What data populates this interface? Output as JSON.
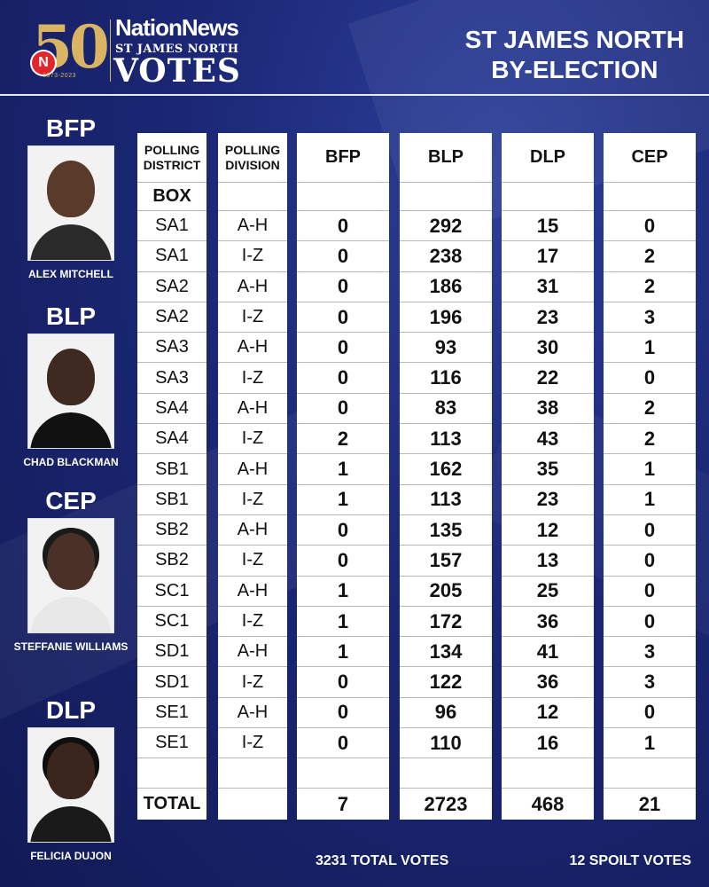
{
  "header": {
    "logo_number": "50",
    "logo_badge": "N",
    "logo_years": "1973-2023",
    "brand": "NationNews",
    "constituency": "ST JAMES NORTH",
    "votes_word": "VOTES",
    "title_line1": "ST JAMES NORTH",
    "title_line2": "BY-ELECTION"
  },
  "candidates": [
    {
      "party": "BFP",
      "name": "ALEX MITCHELL"
    },
    {
      "party": "BLP",
      "name": "CHAD BLACKMAN"
    },
    {
      "party": "CEP",
      "name": "STEFFANIE WILLIAMS"
    },
    {
      "party": "DLP",
      "name": "FELICIA DUJON"
    }
  ],
  "table": {
    "headers": {
      "district": [
        "POLLING",
        "DISTRICT"
      ],
      "division": [
        "POLLING",
        "DIVISION"
      ],
      "bfp": "BFP",
      "blp": "BLP",
      "dlp": "DLP",
      "cep": "CEP"
    },
    "box_label": "BOX",
    "total_label": "TOTAL",
    "rows": [
      {
        "district": "SA1",
        "division": "A-H",
        "bfp": "0",
        "blp": "292",
        "dlp": "15",
        "cep": "0"
      },
      {
        "district": "SA1",
        "division": "I-Z",
        "bfp": "0",
        "blp": "238",
        "dlp": "17",
        "cep": "2"
      },
      {
        "district": "SA2",
        "division": "A-H",
        "bfp": "0",
        "blp": "186",
        "dlp": "31",
        "cep": "2"
      },
      {
        "district": "SA2",
        "division": "I-Z",
        "bfp": "0",
        "blp": "196",
        "dlp": "23",
        "cep": "3"
      },
      {
        "district": "SA3",
        "division": "A-H",
        "bfp": "0",
        "blp": "93",
        "dlp": "30",
        "cep": "1"
      },
      {
        "district": "SA3",
        "division": "I-Z",
        "bfp": "0",
        "blp": "116",
        "dlp": "22",
        "cep": "0"
      },
      {
        "district": "SA4",
        "division": "A-H",
        "bfp": "0",
        "blp": "83",
        "dlp": "38",
        "cep": "2"
      },
      {
        "district": "SA4",
        "division": "I-Z",
        "bfp": "2",
        "blp": "113",
        "dlp": "43",
        "cep": "2"
      },
      {
        "district": "SB1",
        "division": "A-H",
        "bfp": "1",
        "blp": "162",
        "dlp": "35",
        "cep": "1"
      },
      {
        "district": "SB1",
        "division": "I-Z",
        "bfp": "1",
        "blp": "113",
        "dlp": "23",
        "cep": "1"
      },
      {
        "district": "SB2",
        "division": "A-H",
        "bfp": "0",
        "blp": "135",
        "dlp": "12",
        "cep": "0"
      },
      {
        "district": "SB2",
        "division": "I-Z",
        "bfp": "0",
        "blp": "157",
        "dlp": "13",
        "cep": "0"
      },
      {
        "district": "SC1",
        "division": "A-H",
        "bfp": "1",
        "blp": "205",
        "dlp": "25",
        "cep": "0"
      },
      {
        "district": "SC1",
        "division": "I-Z",
        "bfp": "1",
        "blp": "172",
        "dlp": "36",
        "cep": "0"
      },
      {
        "district": "SD1",
        "division": "A-H",
        "bfp": "1",
        "blp": "134",
        "dlp": "41",
        "cep": "3"
      },
      {
        "district": "SD1",
        "division": "I-Z",
        "bfp": "0",
        "blp": "122",
        "dlp": "36",
        "cep": "3"
      },
      {
        "district": "SE1",
        "division": "A-H",
        "bfp": "0",
        "blp": "96",
        "dlp": "12",
        "cep": "0"
      },
      {
        "district": "SE1",
        "division": "I-Z",
        "bfp": "0",
        "blp": "110",
        "dlp": "16",
        "cep": "1"
      }
    ],
    "totals": {
      "bfp": "7",
      "blp": "2723",
      "dlp": "468",
      "cep": "21"
    }
  },
  "footer": {
    "total_votes": "3231 TOTAL VOTES",
    "spoilt_votes": "12 SPOILT VOTES"
  },
  "colors": {
    "background": "#1b2775",
    "gold": "#d8b463",
    "badge_red": "#e0262b"
  }
}
